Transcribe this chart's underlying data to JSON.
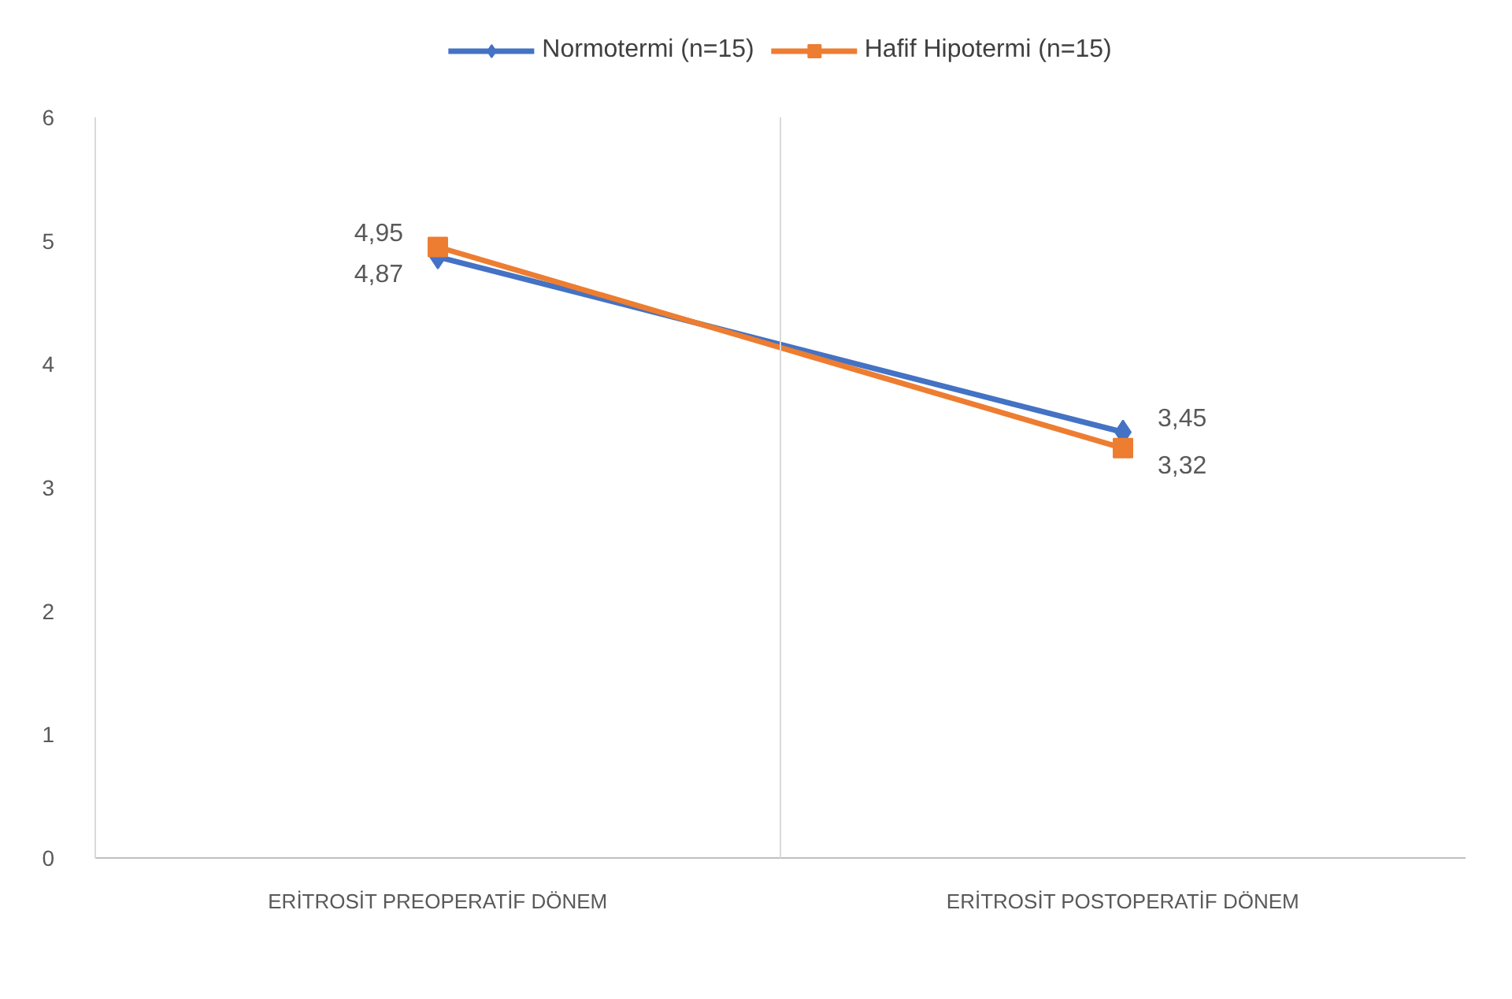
{
  "chart_data": {
    "type": "line",
    "categories": [
      "ERİTROSİT PREOPERATİF DÖNEM",
      "ERİTROSİT POSTOPERATİF DÖNEM"
    ],
    "series": [
      {
        "name": "Normotermi (n=15)",
        "color": "#4472c4",
        "values": [
          4.87,
          3.45
        ],
        "value_labels": [
          "4,87",
          "3,45"
        ],
        "marker": "diamond"
      },
      {
        "name": "Hafif Hipotermi (n=15)",
        "color": "#ed7d31",
        "values": [
          4.95,
          3.32
        ],
        "value_labels": [
          "4,95",
          "3,32"
        ],
        "marker": "square"
      }
    ],
    "ylim": [
      0,
      6
    ],
    "yticks": [
      0,
      1,
      2,
      3,
      4,
      5,
      6
    ],
    "grid": "x",
    "legend": "top",
    "line_style": "solid"
  }
}
